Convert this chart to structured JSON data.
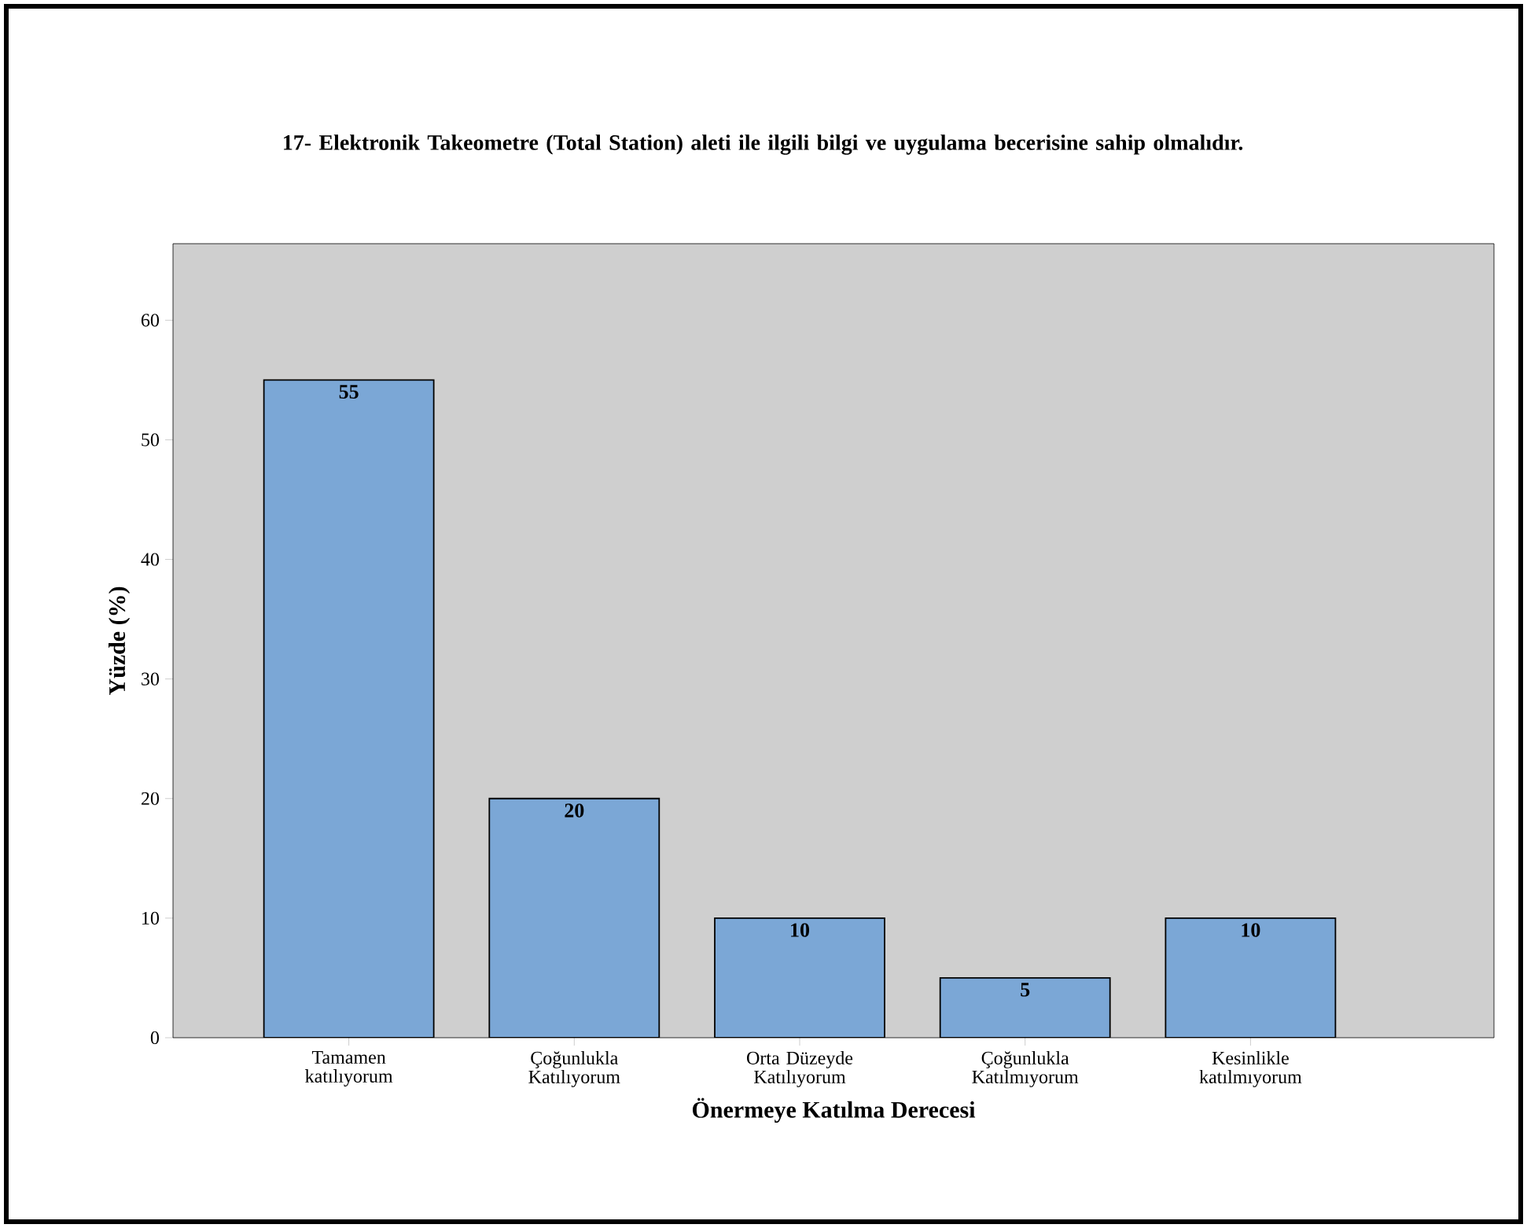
{
  "chart_data": {
    "type": "bar",
    "title": "17- Elektronik Takeometre (Total Station) aleti ile ilgili bilgi ve uygulama becerisine sahip olmalıdır.",
    "xlabel": "Önermeye Katılma Derecesi",
    "ylabel": "Yüzde (%)",
    "categories": [
      "Tamamen katılıyorum",
      "Çoğunlukla Katılıyorum",
      "Orta Düzeyde Katılıyorum",
      "Çoğunlukla Katılmıyorum",
      "Kesinlikle katılmıyorum"
    ],
    "values": [
      55,
      20,
      10,
      5,
      10
    ],
    "color": "#7ba7d6",
    "ylim": [
      0,
      66.4
    ],
    "yticks": [
      0,
      10,
      20,
      30,
      40,
      50,
      60
    ],
    "data_labels": true
  }
}
